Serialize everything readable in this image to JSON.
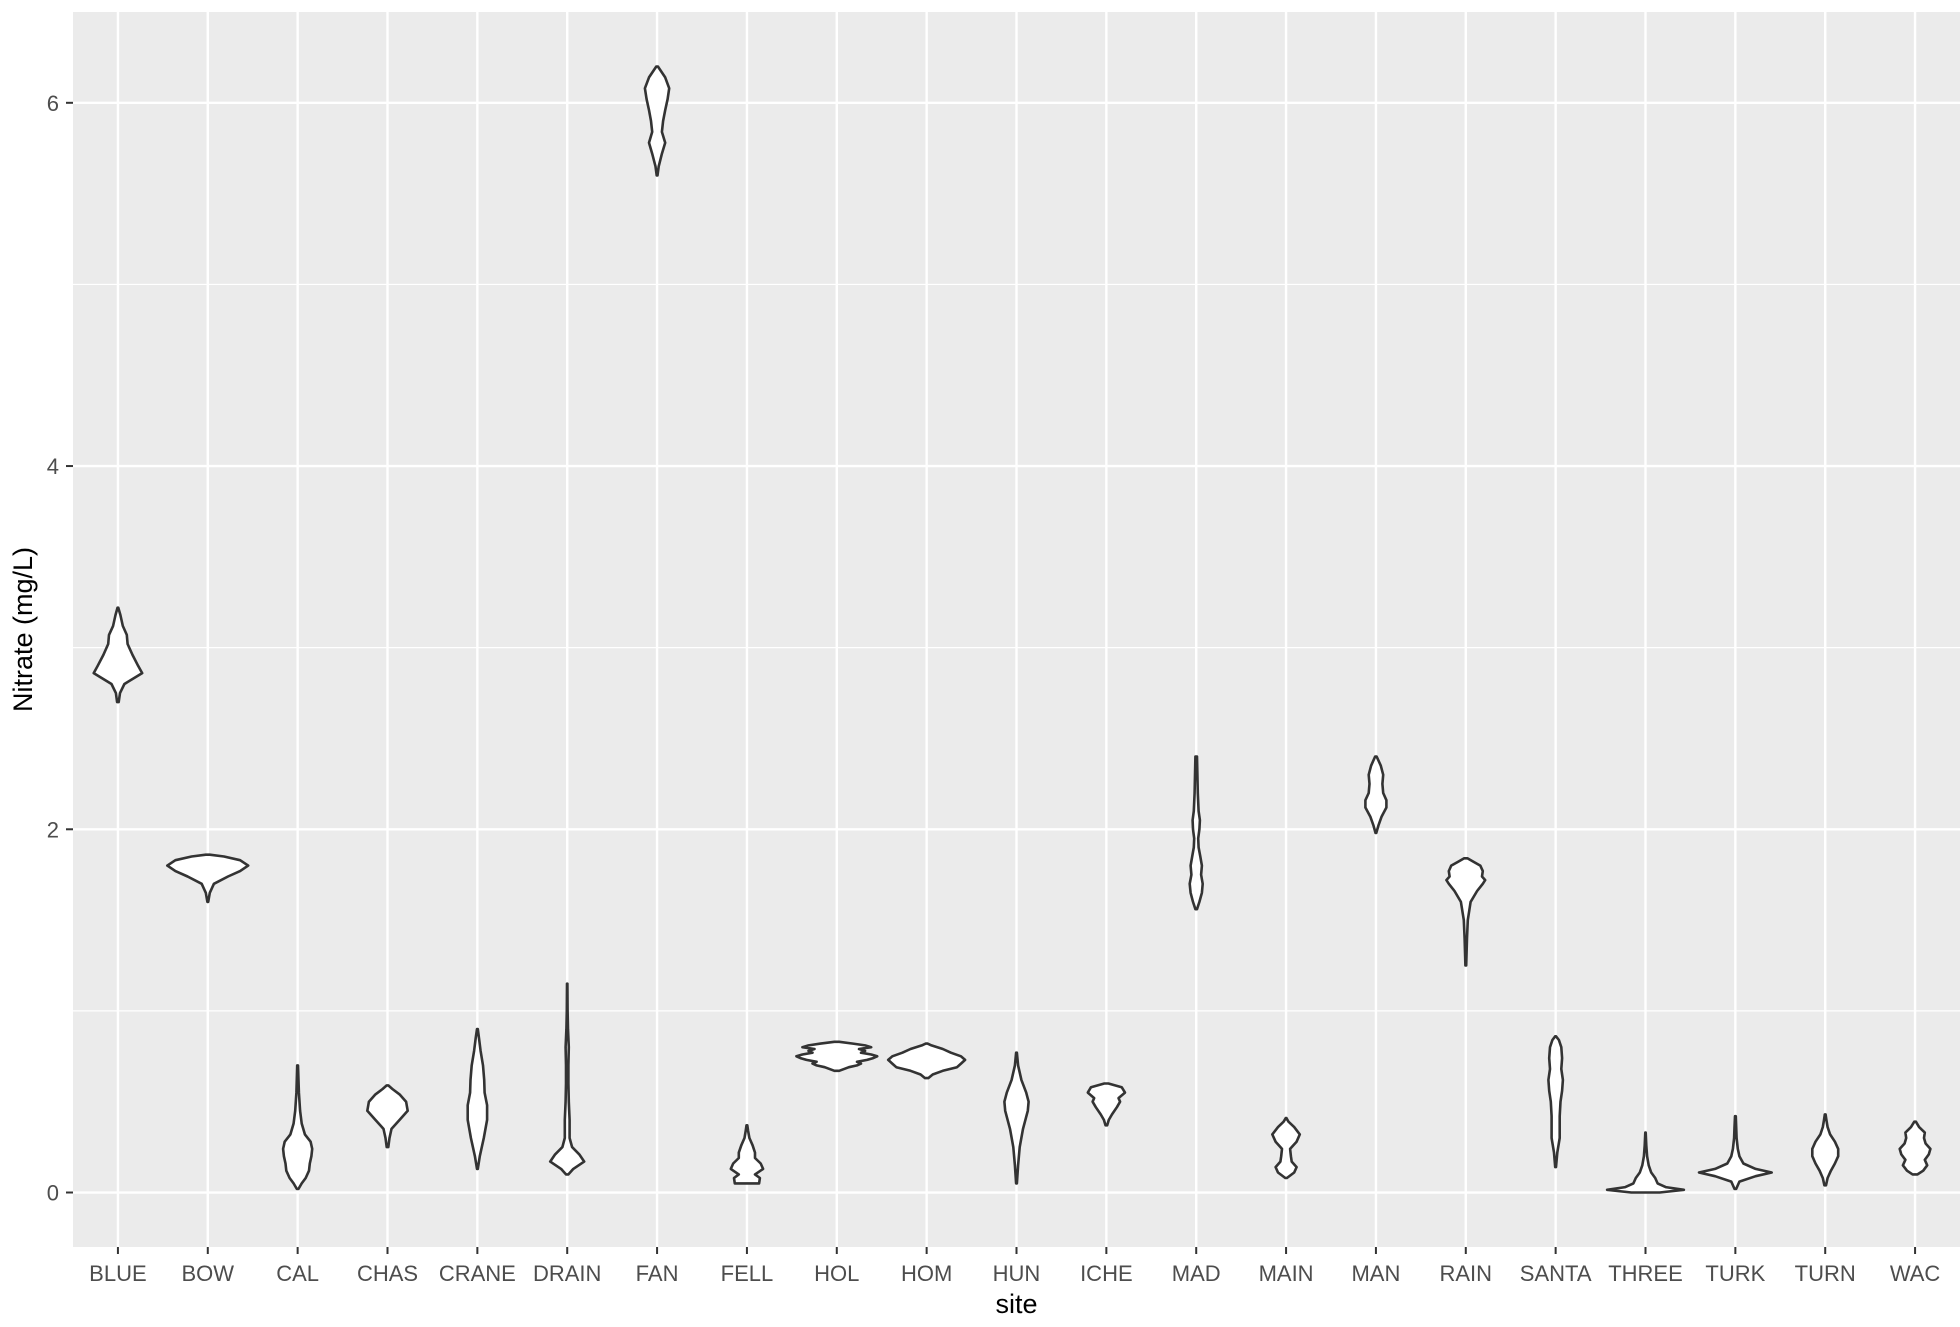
{
  "chart_data": {
    "type": "violin",
    "xlabel": "site",
    "ylabel": "Nitrate (mg/L)",
    "ylim": [
      -0.3,
      6.5
    ],
    "y_ticks": [
      0,
      2,
      4,
      6
    ],
    "grid": true,
    "theme": {
      "panel_background": "#ebebeb",
      "grid_color": "#ffffff",
      "outline": "#333333",
      "fill": "#ffffff"
    },
    "categories": [
      "BLUE",
      "BOW",
      "CAL",
      "CHAS",
      "CRANE",
      "DRAIN",
      "FAN",
      "FELL",
      "HOL",
      "HOM",
      "HUN",
      "ICHE",
      "MAD",
      "MAIN",
      "MAN",
      "RAIN",
      "SANTA",
      "THREE",
      "TURK",
      "TURN",
      "WAC"
    ],
    "violins": [
      {
        "site": "BLUE",
        "min": 2.7,
        "max": 3.22,
        "profile": [
          [
            2.7,
            0.02
          ],
          [
            2.75,
            0.05
          ],
          [
            2.8,
            0.16
          ],
          [
            2.86,
            0.6
          ],
          [
            2.9,
            0.5
          ],
          [
            2.96,
            0.36
          ],
          [
            3.02,
            0.24
          ],
          [
            3.07,
            0.22
          ],
          [
            3.12,
            0.12
          ],
          [
            3.18,
            0.06
          ],
          [
            3.22,
            0.01
          ]
        ]
      },
      {
        "site": "BOW",
        "min": 1.6,
        "max": 1.86,
        "profile": [
          [
            1.6,
            0.01
          ],
          [
            1.65,
            0.05
          ],
          [
            1.7,
            0.15
          ],
          [
            1.74,
            0.5
          ],
          [
            1.77,
            0.8
          ],
          [
            1.8,
            1.0
          ],
          [
            1.83,
            0.8
          ],
          [
            1.85,
            0.4
          ],
          [
            1.86,
            0.05
          ]
        ]
      },
      {
        "site": "CAL",
        "min": 0.02,
        "max": 0.7,
        "profile": [
          [
            0.02,
            0.02
          ],
          [
            0.05,
            0.1
          ],
          [
            0.08,
            0.2
          ],
          [
            0.12,
            0.28
          ],
          [
            0.16,
            0.3
          ],
          [
            0.2,
            0.34
          ],
          [
            0.24,
            0.36
          ],
          [
            0.28,
            0.32
          ],
          [
            0.32,
            0.18
          ],
          [
            0.38,
            0.1
          ],
          [
            0.45,
            0.06
          ],
          [
            0.55,
            0.03
          ],
          [
            0.7,
            0.01
          ]
        ]
      },
      {
        "site": "CHAS",
        "min": 0.25,
        "max": 0.59,
        "profile": [
          [
            0.25,
            0.02
          ],
          [
            0.3,
            0.05
          ],
          [
            0.35,
            0.1
          ],
          [
            0.4,
            0.3
          ],
          [
            0.45,
            0.5
          ],
          [
            0.5,
            0.46
          ],
          [
            0.54,
            0.3
          ],
          [
            0.57,
            0.12
          ],
          [
            0.59,
            0.02
          ]
        ]
      },
      {
        "site": "CRANE",
        "min": 0.13,
        "max": 0.9,
        "profile": [
          [
            0.13,
            0.01
          ],
          [
            0.2,
            0.06
          ],
          [
            0.3,
            0.16
          ],
          [
            0.4,
            0.24
          ],
          [
            0.48,
            0.24
          ],
          [
            0.55,
            0.18
          ],
          [
            0.62,
            0.17
          ],
          [
            0.7,
            0.14
          ],
          [
            0.78,
            0.08
          ],
          [
            0.85,
            0.04
          ],
          [
            0.9,
            0.01
          ]
        ]
      },
      {
        "site": "DRAIN",
        "min": 0.1,
        "max": 1.15,
        "profile": [
          [
            0.1,
            0.03
          ],
          [
            0.13,
            0.15
          ],
          [
            0.17,
            0.42
          ],
          [
            0.21,
            0.3
          ],
          [
            0.25,
            0.12
          ],
          [
            0.3,
            0.06
          ],
          [
            0.4,
            0.06
          ],
          [
            0.5,
            0.04
          ],
          [
            0.6,
            0.03
          ],
          [
            0.7,
            0.03
          ],
          [
            0.8,
            0.04
          ],
          [
            0.9,
            0.02
          ],
          [
            1.0,
            0.01
          ],
          [
            1.15,
            0.005
          ]
        ]
      },
      {
        "site": "FAN",
        "min": 5.6,
        "max": 6.2,
        "profile": [
          [
            5.6,
            0.01
          ],
          [
            5.65,
            0.04
          ],
          [
            5.72,
            0.12
          ],
          [
            5.78,
            0.2
          ],
          [
            5.84,
            0.12
          ],
          [
            5.9,
            0.15
          ],
          [
            5.96,
            0.2
          ],
          [
            6.02,
            0.26
          ],
          [
            6.08,
            0.3
          ],
          [
            6.14,
            0.2
          ],
          [
            6.2,
            0.02
          ]
        ]
      },
      {
        "site": "FELL",
        "min": 0.05,
        "max": 0.37,
        "profile": [
          [
            0.05,
            0.3
          ],
          [
            0.08,
            0.32
          ],
          [
            0.1,
            0.2
          ],
          [
            0.13,
            0.4
          ],
          [
            0.16,
            0.34
          ],
          [
            0.19,
            0.2
          ],
          [
            0.22,
            0.2
          ],
          [
            0.26,
            0.14
          ],
          [
            0.3,
            0.06
          ],
          [
            0.34,
            0.03
          ],
          [
            0.37,
            0.01
          ]
        ]
      },
      {
        "site": "HOL",
        "min": 0.67,
        "max": 0.83,
        "profile": [
          [
            0.67,
            0.06
          ],
          [
            0.69,
            0.3
          ],
          [
            0.7,
            0.5
          ],
          [
            0.71,
            0.6
          ],
          [
            0.72,
            0.5
          ],
          [
            0.73,
            0.75
          ],
          [
            0.74,
            0.9
          ],
          [
            0.75,
            1.0
          ],
          [
            0.76,
            0.85
          ],
          [
            0.77,
            0.6
          ],
          [
            0.78,
            0.7
          ],
          [
            0.79,
            0.55
          ],
          [
            0.8,
            0.85
          ],
          [
            0.81,
            0.7
          ],
          [
            0.82,
            0.4
          ],
          [
            0.83,
            0.06
          ]
        ]
      },
      {
        "site": "HOM",
        "min": 0.63,
        "max": 0.82,
        "profile": [
          [
            0.63,
            0.04
          ],
          [
            0.65,
            0.15
          ],
          [
            0.67,
            0.4
          ],
          [
            0.69,
            0.75
          ],
          [
            0.71,
            0.85
          ],
          [
            0.73,
            0.95
          ],
          [
            0.75,
            0.85
          ],
          [
            0.77,
            0.6
          ],
          [
            0.79,
            0.4
          ],
          [
            0.81,
            0.12
          ],
          [
            0.82,
            0.02
          ]
        ]
      },
      {
        "site": "HUN",
        "min": 0.05,
        "max": 0.77,
        "profile": [
          [
            0.05,
            0.01
          ],
          [
            0.15,
            0.04
          ],
          [
            0.25,
            0.08
          ],
          [
            0.35,
            0.16
          ],
          [
            0.45,
            0.28
          ],
          [
            0.5,
            0.3
          ],
          [
            0.55,
            0.24
          ],
          [
            0.62,
            0.12
          ],
          [
            0.7,
            0.04
          ],
          [
            0.77,
            0.01
          ]
        ]
      },
      {
        "site": "ICHE",
        "min": 0.37,
        "max": 0.6,
        "profile": [
          [
            0.37,
            0.02
          ],
          [
            0.4,
            0.06
          ],
          [
            0.43,
            0.14
          ],
          [
            0.47,
            0.26
          ],
          [
            0.5,
            0.34
          ],
          [
            0.52,
            0.3
          ],
          [
            0.55,
            0.46
          ],
          [
            0.58,
            0.38
          ],
          [
            0.6,
            0.05
          ]
        ]
      },
      {
        "site": "MAD",
        "min": 1.56,
        "max": 2.4,
        "profile": [
          [
            1.56,
            0.02
          ],
          [
            1.6,
            0.08
          ],
          [
            1.65,
            0.14
          ],
          [
            1.7,
            0.16
          ],
          [
            1.75,
            0.12
          ],
          [
            1.8,
            0.14
          ],
          [
            1.85,
            0.1
          ],
          [
            1.9,
            0.06
          ],
          [
            1.95,
            0.05
          ],
          [
            2.0,
            0.08
          ],
          [
            2.05,
            0.09
          ],
          [
            2.1,
            0.06
          ],
          [
            2.2,
            0.04
          ],
          [
            2.3,
            0.03
          ],
          [
            2.4,
            0.02
          ]
        ]
      },
      {
        "site": "MAIN",
        "min": 0.08,
        "max": 0.41,
        "profile": [
          [
            0.08,
            0.02
          ],
          [
            0.11,
            0.2
          ],
          [
            0.14,
            0.26
          ],
          [
            0.17,
            0.14
          ],
          [
            0.2,
            0.12
          ],
          [
            0.24,
            0.1
          ],
          [
            0.28,
            0.26
          ],
          [
            0.32,
            0.34
          ],
          [
            0.36,
            0.2
          ],
          [
            0.39,
            0.06
          ],
          [
            0.41,
            0.01
          ]
        ]
      },
      {
        "site": "MAN",
        "min": 1.98,
        "max": 2.4,
        "profile": [
          [
            1.98,
            0.01
          ],
          [
            2.02,
            0.06
          ],
          [
            2.07,
            0.14
          ],
          [
            2.12,
            0.26
          ],
          [
            2.16,
            0.26
          ],
          [
            2.2,
            0.18
          ],
          [
            2.25,
            0.16
          ],
          [
            2.3,
            0.18
          ],
          [
            2.35,
            0.12
          ],
          [
            2.4,
            0.02
          ]
        ]
      },
      {
        "site": "RAIN",
        "min": 1.25,
        "max": 1.84,
        "profile": [
          [
            1.25,
            0.01
          ],
          [
            1.4,
            0.03
          ],
          [
            1.5,
            0.05
          ],
          [
            1.6,
            0.12
          ],
          [
            1.66,
            0.28
          ],
          [
            1.7,
            0.42
          ],
          [
            1.72,
            0.48
          ],
          [
            1.74,
            0.4
          ],
          [
            1.77,
            0.42
          ],
          [
            1.8,
            0.36
          ],
          [
            1.82,
            0.2
          ],
          [
            1.84,
            0.04
          ]
        ]
      },
      {
        "site": "SANTA",
        "min": 0.14,
        "max": 0.86,
        "profile": [
          [
            0.14,
            0.01
          ],
          [
            0.22,
            0.04
          ],
          [
            0.3,
            0.1
          ],
          [
            0.36,
            0.1
          ],
          [
            0.42,
            0.1
          ],
          [
            0.5,
            0.12
          ],
          [
            0.56,
            0.16
          ],
          [
            0.62,
            0.18
          ],
          [
            0.68,
            0.14
          ],
          [
            0.74,
            0.16
          ],
          [
            0.8,
            0.14
          ],
          [
            0.84,
            0.08
          ],
          [
            0.86,
            0.01
          ]
        ]
      },
      {
        "site": "THREE",
        "min": 0.0,
        "max": 0.33,
        "profile": [
          [
            0.0,
            0.35
          ],
          [
            0.015,
            0.95
          ],
          [
            0.03,
            0.5
          ],
          [
            0.05,
            0.3
          ],
          [
            0.08,
            0.24
          ],
          [
            0.11,
            0.14
          ],
          [
            0.15,
            0.08
          ],
          [
            0.2,
            0.04
          ],
          [
            0.26,
            0.02
          ],
          [
            0.33,
            0.005
          ]
        ]
      },
      {
        "site": "TURK",
        "min": 0.02,
        "max": 0.42,
        "profile": [
          [
            0.02,
            0.02
          ],
          [
            0.06,
            0.1
          ],
          [
            0.09,
            0.5
          ],
          [
            0.11,
            0.9
          ],
          [
            0.13,
            0.5
          ],
          [
            0.16,
            0.2
          ],
          [
            0.2,
            0.1
          ],
          [
            0.24,
            0.06
          ],
          [
            0.3,
            0.03
          ],
          [
            0.36,
            0.02
          ],
          [
            0.42,
            0.01
          ]
        ]
      },
      {
        "site": "TURN",
        "min": 0.04,
        "max": 0.43,
        "profile": [
          [
            0.04,
            0.02
          ],
          [
            0.08,
            0.06
          ],
          [
            0.12,
            0.14
          ],
          [
            0.16,
            0.24
          ],
          [
            0.2,
            0.32
          ],
          [
            0.24,
            0.32
          ],
          [
            0.28,
            0.24
          ],
          [
            0.32,
            0.12
          ],
          [
            0.36,
            0.06
          ],
          [
            0.4,
            0.03
          ],
          [
            0.43,
            0.01
          ]
        ]
      },
      {
        "site": "WAC",
        "min": 0.1,
        "max": 0.39,
        "profile": [
          [
            0.1,
            0.06
          ],
          [
            0.12,
            0.2
          ],
          [
            0.15,
            0.3
          ],
          [
            0.18,
            0.24
          ],
          [
            0.21,
            0.34
          ],
          [
            0.24,
            0.38
          ],
          [
            0.27,
            0.26
          ],
          [
            0.3,
            0.22
          ],
          [
            0.33,
            0.24
          ],
          [
            0.36,
            0.1
          ],
          [
            0.39,
            0.02
          ]
        ]
      }
    ]
  }
}
